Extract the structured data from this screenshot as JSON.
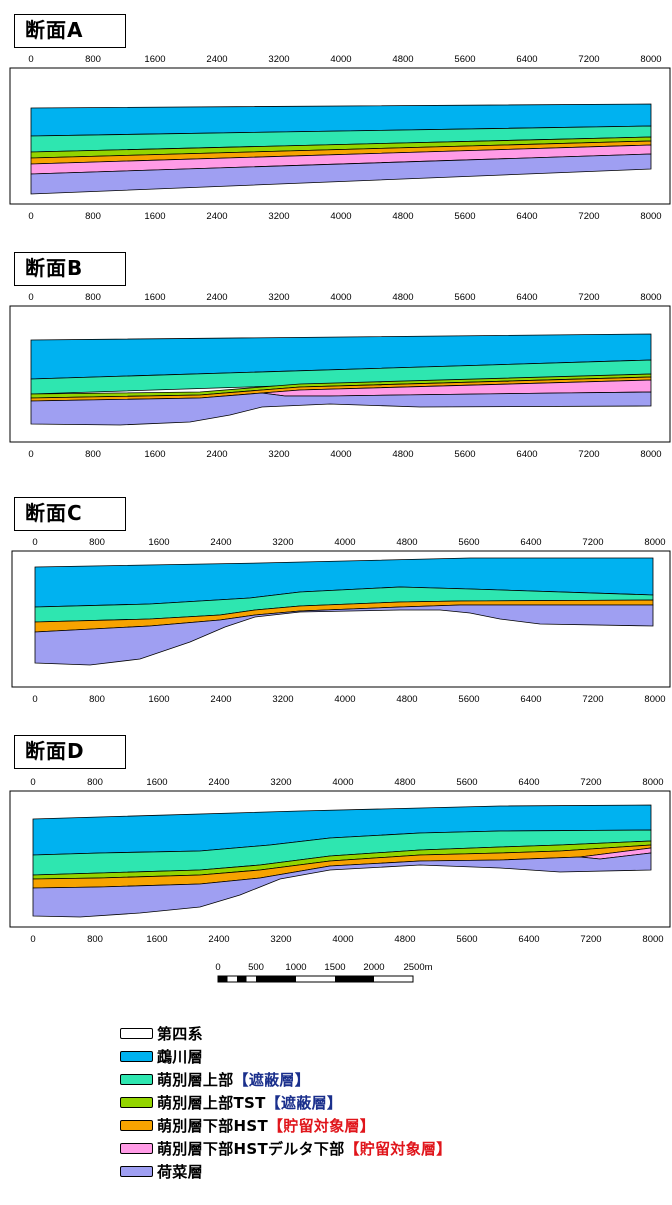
{
  "sections": [
    {
      "title": "断面A"
    },
    {
      "title": "断面B"
    },
    {
      "title": "断面C"
    },
    {
      "title": "断面D"
    }
  ],
  "axis_ticks": [
    "0",
    "800",
    "1600",
    "2400",
    "3200",
    "4000",
    "4800",
    "5600",
    "6400",
    "7200",
    "8000"
  ],
  "scale_bar": {
    "labels": [
      "0",
      "500",
      "1000",
      "1500",
      "2000",
      "2500m"
    ],
    "values_m": [
      0,
      500,
      1000,
      1500,
      2000,
      2500
    ]
  },
  "colors": {
    "quaternary": "#ffffff",
    "unosgawa": "#00b2f0",
    "upper": "#2ee6b0",
    "upper_tst": "#93d500",
    "lower_hst": "#f7a300",
    "lower_delta": "#ff9be6",
    "kana": "#9f9ff2"
  },
  "legend": [
    {
      "swatch_key": "quaternary",
      "label": "第四系",
      "tag": ""
    },
    {
      "swatch_key": "unosgawa",
      "label": "鵡川層",
      "tag": ""
    },
    {
      "swatch_key": "upper",
      "label": "萌別層上部",
      "tag": "【遮蔽層】",
      "tag_color": "blue"
    },
    {
      "swatch_key": "upper_tst",
      "label": "萌別層上部TST",
      "tag": "【遮蔽層】",
      "tag_color": "blue"
    },
    {
      "swatch_key": "lower_hst",
      "label": "萌別層下部HST",
      "tag": "【貯留対象層】",
      "tag_color": "red"
    },
    {
      "swatch_key": "lower_delta",
      "label": "萌別層下部HSTデルタ下部",
      "tag": "【貯留対象層】",
      "tag_color": "red"
    },
    {
      "swatch_key": "kana",
      "label": "荷菜層",
      "tag": ""
    }
  ]
}
